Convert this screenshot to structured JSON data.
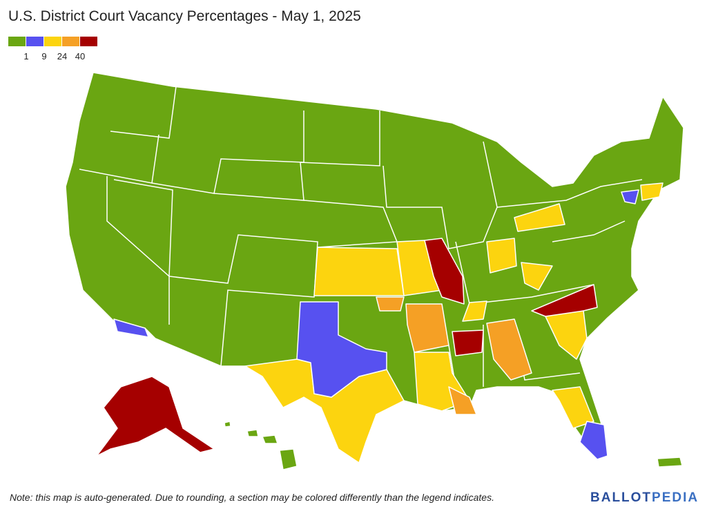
{
  "title": "U.S. District Court Vacancy Percentages - May 1, 2025",
  "legend": {
    "colors": [
      "#6aa612",
      "#5751f0",
      "#fcd40f",
      "#f5a025",
      "#a50000"
    ],
    "ticks": [
      1,
      9,
      24,
      40
    ]
  },
  "note": "Note: this map is auto-generated. Due to rounding, a section may be colored differently than the legend indicates.",
  "logo": {
    "part1": "BALLOT",
    "part2": "PEDIA"
  }
}
